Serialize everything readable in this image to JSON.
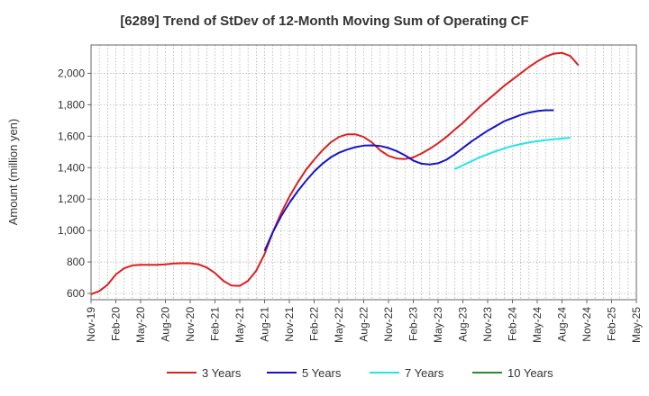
{
  "chart_data": {
    "type": "line",
    "title": "[6289]  Trend of StDev of 12-Month Moving Sum of Operating CF",
    "xlabel": "",
    "ylabel": "Amount (million yen)",
    "ylim": [
      560,
      2180
    ],
    "yticks": [
      600,
      800,
      1000,
      1200,
      1400,
      1600,
      1800,
      2000
    ],
    "ytick_labels": [
      "600",
      "800",
      "1,000",
      "1,200",
      "1,400",
      "1,600",
      "1,800",
      "2,000"
    ],
    "xticks": [
      "Nov-19",
      "Feb-20",
      "May-20",
      "Aug-20",
      "Nov-20",
      "Feb-21",
      "May-21",
      "Aug-21",
      "Nov-21",
      "Feb-22",
      "May-22",
      "Aug-22",
      "Nov-22",
      "Feb-23",
      "May-23",
      "Aug-23",
      "Nov-23",
      "Feb-24",
      "May-24",
      "Aug-24",
      "Nov-24",
      "Feb-25",
      "May-25"
    ],
    "grid": true,
    "legend_position": "bottom",
    "series": [
      {
        "name": "3 Years",
        "color": "#dd1f1f",
        "start_index": 0,
        "values": [
          595,
          615,
          655,
          720,
          760,
          778,
          782,
          782,
          782,
          785,
          790,
          792,
          792,
          785,
          765,
          730,
          680,
          650,
          648,
          680,
          745,
          850,
          990,
          1110,
          1215,
          1305,
          1385,
          1450,
          1510,
          1560,
          1595,
          1612,
          1612,
          1595,
          1560,
          1510,
          1475,
          1458,
          1455,
          1465,
          1490,
          1520,
          1555,
          1595,
          1640,
          1685,
          1735,
          1785,
          1830,
          1875,
          1920,
          1960,
          2000,
          2040,
          2075,
          2105,
          2125,
          2130,
          2110,
          2050
        ]
      },
      {
        "name": "5 Years",
        "color": "#1515c8",
        "start_index": 21,
        "values": [
          870,
          990,
          1090,
          1175,
          1250,
          1315,
          1375,
          1425,
          1465,
          1495,
          1515,
          1530,
          1540,
          1542,
          1538,
          1525,
          1505,
          1478,
          1445,
          1425,
          1420,
          1428,
          1450,
          1485,
          1525,
          1565,
          1600,
          1635,
          1665,
          1695,
          1715,
          1735,
          1750,
          1760,
          1765,
          1765
        ]
      },
      {
        "name": "7 Years",
        "color": "#22e6e6",
        "start_index": 44,
        "values": [
          1390,
          1415,
          1440,
          1465,
          1485,
          1505,
          1522,
          1538,
          1550,
          1560,
          1568,
          1575,
          1580,
          1585,
          1590
        ]
      },
      {
        "name": "10 Years",
        "color": "#2a8a2a",
        "start_index": 0,
        "values": []
      }
    ]
  }
}
